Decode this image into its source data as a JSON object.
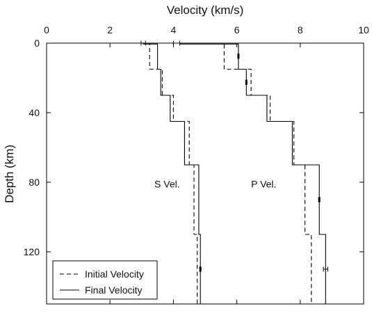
{
  "chart_data": {
    "type": "line",
    "title": "",
    "xlabel": "Velocity (km/s)",
    "ylabel": "Depth (km)",
    "xlim": [
      0,
      10
    ],
    "ylim": [
      0,
      150
    ],
    "x_axis_position": "top",
    "y_inverted": true,
    "x_ticks": [
      0,
      2,
      4,
      6,
      8,
      10
    ],
    "y_ticks": [
      0,
      40,
      80,
      120
    ],
    "grid": false,
    "legend_position": "bottom-left",
    "annotations": [
      {
        "text": "S Vel.",
        "x": 3.4,
        "y": 81
      },
      {
        "text": "P Vel.",
        "x": 6.45,
        "y": 81
      }
    ],
    "series": [
      {
        "name": "Initial Velocity",
        "style": "dashed",
        "wave": "S",
        "points": [
          [
            1.65,
            0
          ],
          [
            3.25,
            0
          ],
          [
            3.25,
            15
          ],
          [
            3.65,
            15
          ],
          [
            3.65,
            30
          ],
          [
            4.0,
            30
          ],
          [
            4.0,
            45
          ],
          [
            4.5,
            45
          ],
          [
            4.5,
            70
          ],
          [
            4.65,
            70
          ],
          [
            4.65,
            110
          ],
          [
            4.75,
            110
          ],
          [
            4.75,
            150
          ]
        ]
      },
      {
        "name": "Final Velocity",
        "style": "solid",
        "wave": "S",
        "points": [
          [
            3.05,
            0
          ],
          [
            3.05,
            0.5
          ],
          [
            3.5,
            0.5
          ],
          [
            3.5,
            15
          ],
          [
            3.6,
            15
          ],
          [
            3.6,
            30
          ],
          [
            3.9,
            30
          ],
          [
            3.9,
            45
          ],
          [
            4.35,
            45
          ],
          [
            4.35,
            70
          ],
          [
            4.8,
            70
          ],
          [
            4.8,
            110
          ],
          [
            4.85,
            110
          ],
          [
            4.85,
            150
          ]
        ]
      },
      {
        "name": "Initial Velocity",
        "style": "dashed",
        "wave": "P",
        "points": [
          [
            4.1,
            0
          ],
          [
            5.6,
            0
          ],
          [
            5.6,
            15
          ],
          [
            6.45,
            15
          ],
          [
            6.45,
            30
          ],
          [
            7.05,
            30
          ],
          [
            7.05,
            45
          ],
          [
            7.8,
            45
          ],
          [
            7.8,
            70
          ],
          [
            8.15,
            70
          ],
          [
            8.15,
            110
          ],
          [
            8.35,
            110
          ],
          [
            8.35,
            150
          ]
        ]
      },
      {
        "name": "Final Velocity",
        "style": "solid",
        "wave": "P",
        "points": [
          [
            4.2,
            0.5
          ],
          [
            6.05,
            0.5
          ],
          [
            6.05,
            15
          ],
          [
            6.3,
            15
          ],
          [
            6.3,
            30
          ],
          [
            6.95,
            30
          ],
          [
            6.95,
            45
          ],
          [
            7.75,
            45
          ],
          [
            7.75,
            70
          ],
          [
            8.6,
            70
          ],
          [
            8.6,
            110
          ],
          [
            8.8,
            110
          ],
          [
            8.8,
            150
          ]
        ]
      }
    ],
    "error_bars": [
      {
        "orientation": "horizontal",
        "x": 3.05,
        "y": 0,
        "err": 0.07
      },
      {
        "orientation": "horizontal",
        "x": 4.1,
        "y": 0,
        "err": 0.1
      },
      {
        "orientation": "horizontal",
        "x": 8.8,
        "y": 130,
        "err": 0.07
      },
      {
        "orientation": "vertical",
        "x": 6.05,
        "y": 7.5,
        "err": 1.5
      },
      {
        "orientation": "vertical",
        "x": 6.3,
        "y": 22.5,
        "err": 1.5
      },
      {
        "orientation": "vertical",
        "x": 8.6,
        "y": 90,
        "err": 1.5
      },
      {
        "orientation": "vertical",
        "x": 4.85,
        "y": 130,
        "err": 1.5
      }
    ],
    "legend": [
      {
        "label": "Initial Velocity",
        "style": "dashed"
      },
      {
        "label": "Final Velocity",
        "style": "solid"
      }
    ]
  }
}
